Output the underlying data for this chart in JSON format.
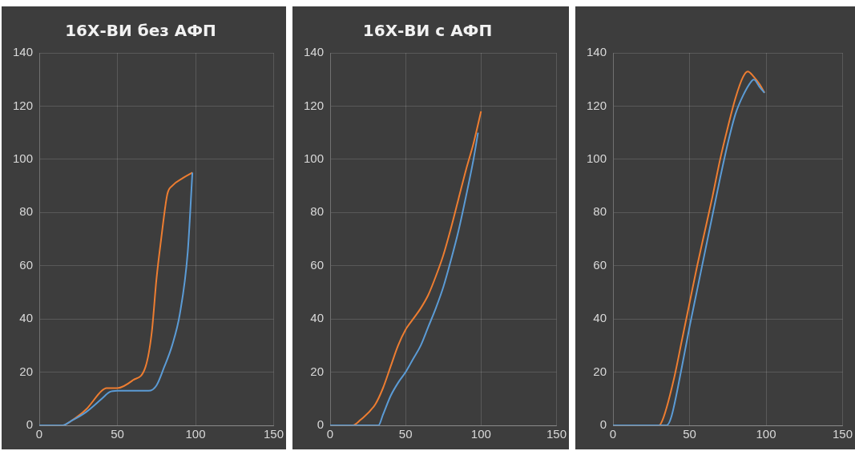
{
  "chart_data": [
    {
      "type": "line",
      "title": "16Х-ВИ без АФП",
      "xlim": [
        0,
        150
      ],
      "xticks": [
        0,
        50,
        100,
        150
      ],
      "ylim": [
        0,
        140
      ],
      "yticks": [
        0,
        20,
        40,
        60,
        80,
        100,
        120,
        140
      ],
      "grid": true,
      "marker": "none",
      "legend": false,
      "series": [
        {
          "color": "#5b9bd5",
          "x": [
            0,
            15,
            20,
            30,
            40,
            45,
            50,
            60,
            70,
            75,
            80,
            85,
            90,
            95,
            98
          ],
          "values": [
            0,
            0,
            1.5,
            5,
            10,
            12.5,
            13,
            13,
            13,
            15,
            22,
            30,
            42,
            65,
            95
          ]
        },
        {
          "color": "#ed7d31",
          "x": [
            0,
            15,
            20,
            30,
            40,
            43,
            50,
            60,
            68,
            72,
            75,
            78,
            82,
            85,
            92,
            98
          ],
          "values": [
            0,
            0,
            1.5,
            6,
            13,
            14,
            14,
            17,
            22,
            35,
            55,
            70,
            87,
            90,
            93,
            95
          ]
        }
      ]
    },
    {
      "type": "line",
      "title": "16Х-ВИ с АФП",
      "xlim": [
        0,
        150
      ],
      "xticks": [
        0,
        50,
        100,
        150
      ],
      "ylim": [
        0,
        140
      ],
      "yticks": [
        0,
        20,
        40,
        60,
        80,
        100,
        120,
        140
      ],
      "grid": true,
      "marker": "none",
      "legend": false,
      "series": [
        {
          "color": "#5b9bd5",
          "x": [
            0,
            32,
            35,
            40,
            45,
            50,
            55,
            60,
            65,
            70,
            75,
            80,
            85,
            90,
            95,
            98
          ],
          "values": [
            0,
            0,
            4,
            11,
            16,
            20,
            25,
            30,
            37,
            44,
            52,
            62,
            73,
            86,
            100,
            110
          ]
        },
        {
          "color": "#ed7d31",
          "x": [
            0,
            15,
            20,
            30,
            35,
            40,
            45,
            50,
            55,
            60,
            65,
            70,
            75,
            80,
            85,
            90,
            95,
            100
          ],
          "values": [
            0,
            0,
            2,
            8,
            14,
            22,
            30,
            36,
            40,
            44,
            49,
            56,
            64,
            74,
            85,
            96,
            106,
            118
          ]
        }
      ]
    },
    {
      "type": "line",
      "xlim": [
        0,
        150
      ],
      "xticks": [
        0,
        50,
        100,
        150
      ],
      "ylim": [
        0,
        140
      ],
      "yticks": [
        0,
        20,
        40,
        60,
        80,
        100,
        120,
        140
      ],
      "grid": true,
      "marker": "none",
      "legend": false,
      "series": [
        {
          "color": "#5b9bd5",
          "x": [
            0,
            35,
            38,
            45,
            50,
            55,
            60,
            65,
            70,
            75,
            80,
            85,
            90,
            92,
            96,
            99
          ],
          "values": [
            0,
            0,
            3,
            22,
            37,
            51,
            65,
            79,
            93,
            106,
            117,
            124,
            129,
            130,
            127,
            125
          ]
        },
        {
          "color": "#ed7d31",
          "x": [
            0,
            30,
            33,
            40,
            45,
            50,
            55,
            60,
            65,
            70,
            75,
            80,
            85,
            88,
            92,
            96,
            99
          ],
          "values": [
            0,
            0,
            3,
            18,
            32,
            46,
            60,
            73,
            86,
            100,
            112,
            123,
            131,
            133,
            131,
            128,
            125
          ]
        }
      ]
    }
  ]
}
